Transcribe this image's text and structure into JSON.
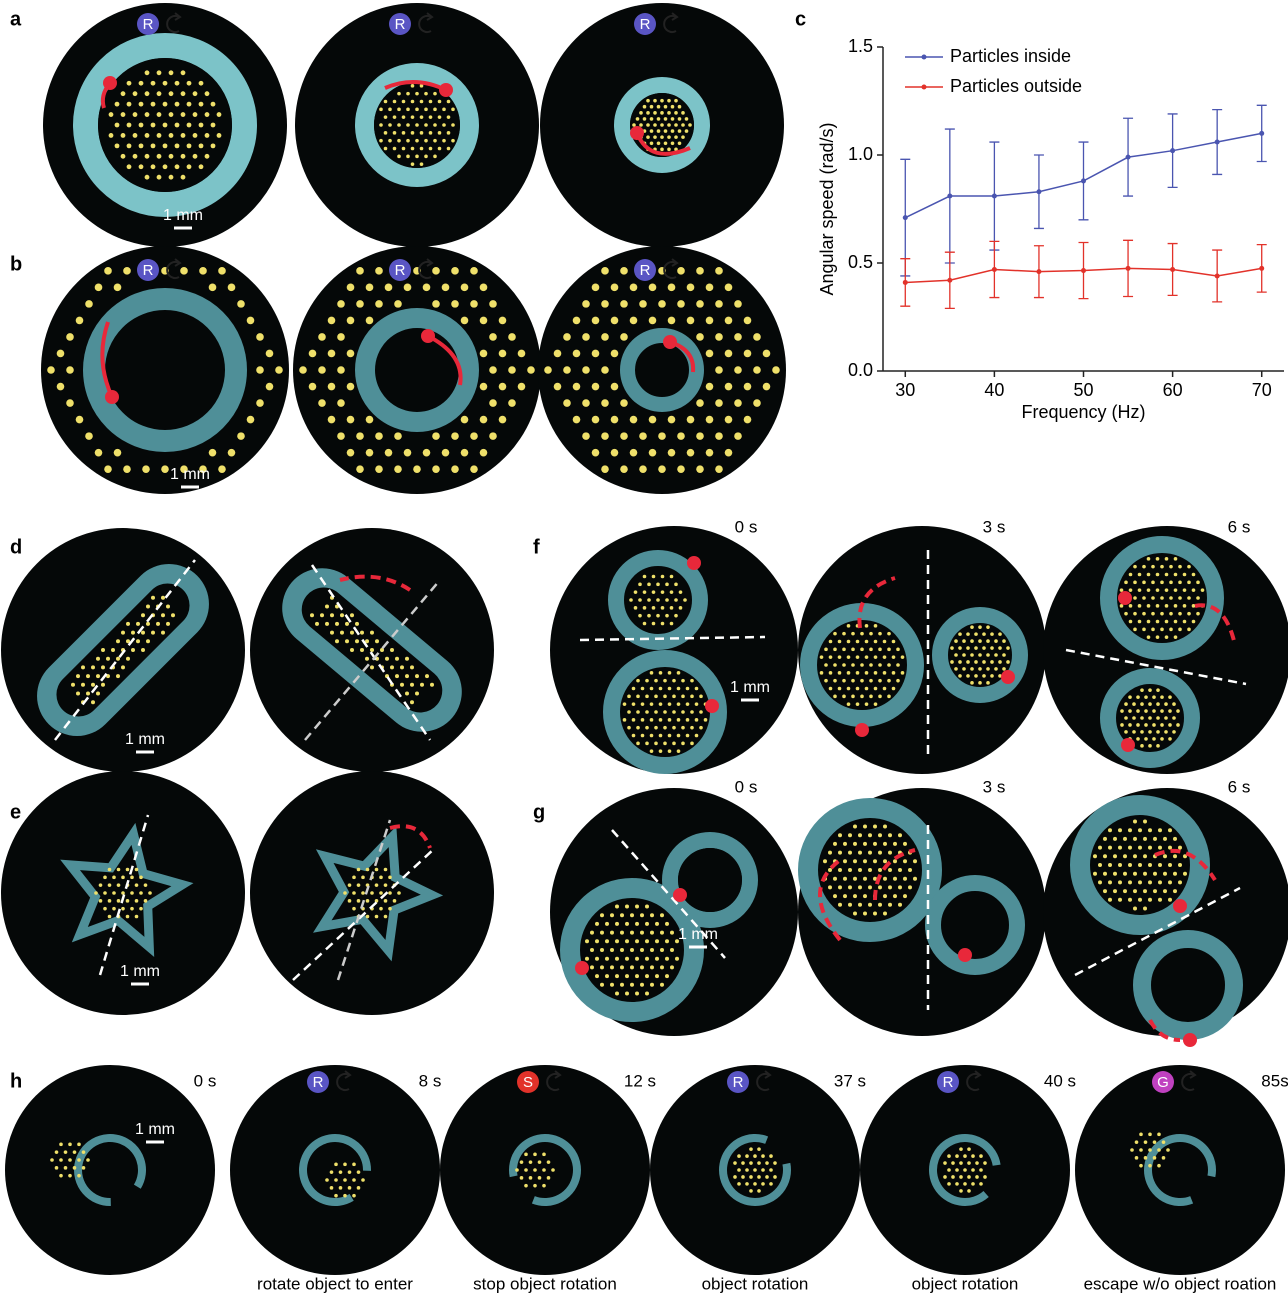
{
  "panel_labels": {
    "a": "a",
    "b": "b",
    "c": "c",
    "d": "d",
    "e": "e",
    "f": "f",
    "g": "g",
    "h": "h"
  },
  "scale_label": "1 mm",
  "panel_a": {
    "badges": [
      "R",
      "R",
      "R"
    ]
  },
  "panel_b": {
    "badges": [
      "R",
      "R",
      "R"
    ]
  },
  "badge_colors": {
    "R": "#5a55c4",
    "S": "#e2322a",
    "G": "#c041c0"
  },
  "panel_f": {
    "times": [
      "0 s",
      "3 s",
      "6 s"
    ]
  },
  "panel_g": {
    "times": [
      "0 s",
      "3 s",
      "6 s"
    ]
  },
  "panel_h": {
    "frames": [
      {
        "time": "0 s"
      },
      {
        "time": "8 s",
        "badge": "R",
        "caption": "rotate object to enter"
      },
      {
        "time": "12 s",
        "badge": "S",
        "caption": "stop object rotation"
      },
      {
        "time": "37 s",
        "badge": "R",
        "caption": "object rotation"
      },
      {
        "time": "40 s",
        "badge": "R",
        "caption": "object rotation"
      },
      {
        "time": "85s",
        "badge": "G",
        "caption": "escape w/o object roation"
      }
    ]
  },
  "chart_data": {
    "type": "line",
    "xlabel": "Frequency (Hz)",
    "ylabel": "Angular speed (rad/s)",
    "x": [
      30,
      35,
      40,
      45,
      50,
      55,
      60,
      65,
      70
    ],
    "series": [
      {
        "name": "Particles inside",
        "color": "#4a55b0",
        "values": [
          0.71,
          0.81,
          0.81,
          0.83,
          0.88,
          0.99,
          1.02,
          1.06,
          1.1
        ],
        "errors": [
          0.27,
          0.31,
          0.25,
          0.17,
          0.18,
          0.18,
          0.17,
          0.15,
          0.13
        ]
      },
      {
        "name": "Particles outside",
        "color": "#e2322a",
        "values": [
          0.41,
          0.42,
          0.47,
          0.46,
          0.465,
          0.475,
          0.47,
          0.44,
          0.475
        ],
        "errors": [
          0.11,
          0.13,
          0.13,
          0.12,
          0.13,
          0.13,
          0.12,
          0.12,
          0.11
        ]
      }
    ],
    "xlim": [
      27.5,
      72.5
    ],
    "ylim": [
      0,
      1.5
    ],
    "xticks": [
      30,
      40,
      50,
      60,
      70
    ],
    "yticks": [
      {
        "value": 0,
        "label": "0.0"
      },
      {
        "value": 0.5,
        "label": "0.5"
      },
      {
        "value": 1,
        "label": "1.0"
      },
      {
        "value": 1.5,
        "label": "1.5"
      }
    ],
    "legend": "upper left"
  }
}
